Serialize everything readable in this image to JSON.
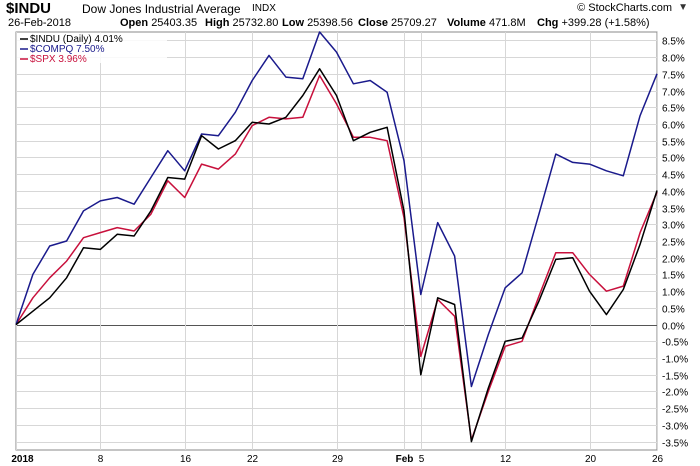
{
  "header": {
    "symbol": "$INDU",
    "name": "Dow Jones Industrial Average",
    "exchange": "INDX",
    "brand": "© StockCharts.com",
    "brand_icon": "caret-down-icon",
    "date": "26-Feb-2018",
    "open_label": "Open",
    "open": "25403.35",
    "high_label": "High",
    "high": "25732.80",
    "low_label": "Low",
    "low": "25398.56",
    "close_label": "Close",
    "close": "25709.27",
    "volume_label": "Volume",
    "volume": "471.8M",
    "chg_label": "Chg",
    "chg": "+399.28 (+1.58%)"
  },
  "colors": {
    "indu": "#000000",
    "compq": "#1a1a8c",
    "spx": "#c8103c",
    "grid": "#d7d7d7",
    "zero_line": "#555555",
    "frame": "#888888"
  },
  "chart_data": {
    "type": "line",
    "title": "",
    "xlabel": "",
    "ylabel": "",
    "ylim": [
      -3.75,
      8.75
    ],
    "y_axis_side": "right",
    "yticks": [
      -3.5,
      -3.0,
      -2.5,
      -2.0,
      -1.5,
      -1.0,
      -0.5,
      0.0,
      0.5,
      1.0,
      1.5,
      2.0,
      2.5,
      3.0,
      3.5,
      4.0,
      4.5,
      5.0,
      5.5,
      6.0,
      6.5,
      7.0,
      7.5,
      8.0,
      8.5
    ],
    "ytick_labels": [
      "-3.5%",
      "-3.0%",
      "-2.5%",
      "-2.0%",
      "-1.5%",
      "-1.0%",
      "-0.5%",
      "0.0%",
      "0.5%",
      "1.0%",
      "1.5%",
      "2.0%",
      "2.5%",
      "3.0%",
      "3.5%",
      "4.0%",
      "4.5%",
      "5.0%",
      "5.5%",
      "6.0%",
      "6.5%",
      "7.0%",
      "7.5%",
      "8.0%",
      "8.5%"
    ],
    "x_index_max": 38,
    "xticks": [
      {
        "label": "2018",
        "index": 0,
        "bold": true
      },
      {
        "label": "8",
        "index": 5
      },
      {
        "label": "16",
        "index": 10
      },
      {
        "label": "22",
        "index": 14
      },
      {
        "label": "29",
        "index": 19
      },
      {
        "label": "Feb",
        "index": 23,
        "bold": true
      },
      {
        "label": "5",
        "index": 24
      },
      {
        "label": "12",
        "index": 29
      },
      {
        "label": "20",
        "index": 34
      },
      {
        "label": "26",
        "index": 38
      }
    ],
    "grid": true,
    "legend_position": "top-left",
    "series": [
      {
        "name": "$INDU (Daily) 4.01%",
        "color_key": "indu",
        "values": [
          0,
          0.4,
          0.8,
          1.4,
          2.3,
          2.25,
          2.7,
          2.65,
          3.4,
          4.4,
          4.35,
          5.65,
          5.25,
          5.5,
          6.05,
          6.0,
          6.2,
          6.85,
          7.65,
          6.85,
          5.5,
          5.75,
          5.9,
          3.4,
          -1.5,
          0.8,
          0.6,
          -3.5,
          -1.9,
          -0.5,
          -0.4,
          0.7,
          1.95,
          2.0,
          1.0,
          0.3,
          1.05,
          2.4,
          4.01
        ]
      },
      {
        "name": "$COMPQ 7.50%",
        "color_key": "compq",
        "values": [
          0,
          1.5,
          2.35,
          2.5,
          3.4,
          3.7,
          3.8,
          3.6,
          4.4,
          5.2,
          4.6,
          5.7,
          5.65,
          6.35,
          7.3,
          8.05,
          7.4,
          7.35,
          8.75,
          8.15,
          7.2,
          7.3,
          6.95,
          4.9,
          0.9,
          3.05,
          2.05,
          -1.85,
          -0.3,
          1.1,
          1.55,
          3.3,
          5.1,
          4.85,
          4.8,
          4.6,
          4.45,
          6.25,
          7.5
        ]
      },
      {
        "name": "$SPX 3.96%",
        "color_key": "spx",
        "values": [
          0,
          0.8,
          1.4,
          1.9,
          2.6,
          2.75,
          2.9,
          2.8,
          3.3,
          4.3,
          3.8,
          4.8,
          4.65,
          5.1,
          5.95,
          6.2,
          6.15,
          6.2,
          7.45,
          6.6,
          5.6,
          5.6,
          5.5,
          3.2,
          -0.95,
          0.75,
          0.25,
          -3.45,
          -2.0,
          -0.65,
          -0.5,
          0.85,
          2.15,
          2.15,
          1.5,
          1.0,
          1.15,
          2.75,
          3.96
        ]
      }
    ]
  }
}
